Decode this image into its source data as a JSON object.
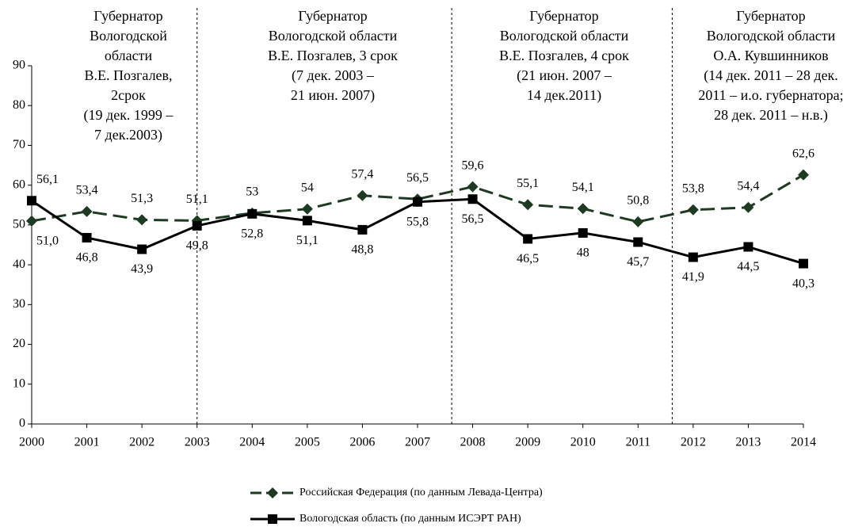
{
  "chart_data": {
    "type": "line",
    "categories": [
      "2000",
      "2001",
      "2002",
      "2003",
      "2004",
      "2005",
      "2006",
      "2007",
      "2008",
      "2009",
      "2010",
      "2011",
      "2012",
      "2013",
      "2014"
    ],
    "ylim": [
      0,
      90
    ],
    "yticks": [
      0,
      10,
      20,
      30,
      40,
      50,
      60,
      70,
      80,
      90
    ],
    "series": [
      {
        "name": "Российская Федерация (по данным Левада-Центра)",
        "color": "#1e3a22",
        "dash": true,
        "marker": "diamond",
        "values": [
          51.0,
          53.4,
          51.3,
          51.1,
          53,
          54,
          57.4,
          56.5,
          59.6,
          55.1,
          54.1,
          50.8,
          53.8,
          54.4,
          62.6
        ],
        "value_labels": [
          "51,0",
          "53,4",
          "51,3",
          "51,1",
          "53",
          "54",
          "57,4",
          "56,5",
          "59,6",
          "55,1",
          "54,1",
          "50,8",
          "53,8",
          "54,4",
          "62,6"
        ]
      },
      {
        "name": "Вологодская область (по данным ИСЭРТ РАН)",
        "color": "#000000",
        "dash": false,
        "marker": "square",
        "values": [
          56.1,
          46.8,
          43.9,
          49.8,
          52.8,
          51.1,
          48.8,
          55.8,
          56.5,
          46.5,
          48,
          45.7,
          41.9,
          44.5,
          40.3
        ],
        "value_labels": [
          "56,1",
          "46,8",
          "43,9",
          "49,8",
          "52,8",
          "51,1",
          "48,8",
          "55,8",
          "56,5",
          "46,5",
          "48",
          "45,7",
          "41,9",
          "44,5",
          "40,3"
        ]
      }
    ],
    "annotations": [
      {
        "lines": [
          "Губернатор",
          "Вологодской",
          "области",
          "В.Е. Позгалев,",
          "2срок",
          "(19 дек. 1999 –",
          "7 дек.2003)"
        ]
      },
      {
        "lines": [
          "Губернатор",
          "Вологодской области",
          "В.Е. Позгалев, 3 срок",
          "(7 дек. 2003 –",
          "21 июн. 2007)"
        ]
      },
      {
        "lines": [
          "Губернатор",
          "Вологодской области",
          "В.Е. Позгалев, 4 срок",
          "(21 июн. 2007 –",
          "14 дек.2011)"
        ]
      },
      {
        "lines": [
          "Губернатор",
          "Вологодской области",
          "О.А. Кувшинников",
          "(14 дек. 2011 – 28 дек.",
          "2011 – и.о. губернатора;",
          "28 дек. 2011 – н.в.)"
        ]
      }
    ]
  }
}
